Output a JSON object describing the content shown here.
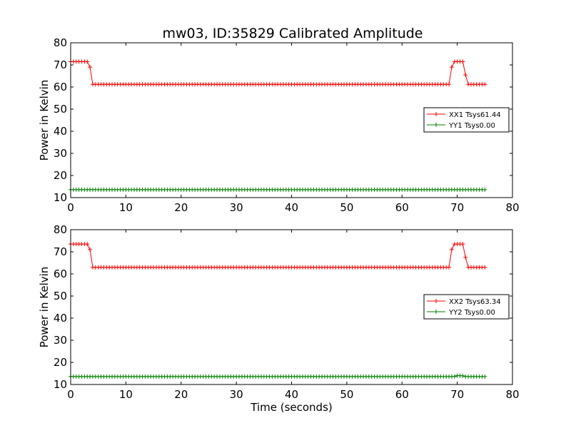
{
  "title": "mw03, ID:35829 Calibrated Amplitude",
  "colors": {
    "xx": "#ff0000",
    "yy": "#008000"
  },
  "chart_data": [
    {
      "type": "line",
      "title": "mw03, ID:35829 Calibrated Amplitude",
      "xlabel": "",
      "ylabel": "Power in Kelvin",
      "xlim": [
        0,
        80
      ],
      "ylim": [
        10,
        80
      ],
      "xticks": [
        "0",
        "10",
        "20",
        "30",
        "40",
        "50",
        "60",
        "70",
        "80"
      ],
      "yticks": [
        "10",
        "20",
        "30",
        "40",
        "50",
        "60",
        "70",
        "80"
      ],
      "grid": false,
      "legend_position": "center-right",
      "x_step": 0.5,
      "x_range": [
        0,
        75
      ],
      "series": [
        {
          "name": "XX1 Tsys61.44",
          "color": "#ff0000",
          "marker": "+",
          "profile": [
            {
              "x_from": 0,
              "x_to": 3.5,
              "y": 71.5
            },
            {
              "x_from": 4,
              "x_to": 69,
              "y": 61.2
            },
            {
              "x_from": 69.5,
              "x_to": 71,
              "y": 71.5
            },
            {
              "x_from": 71.5,
              "x_to": 75,
              "y": 61.2
            }
          ],
          "points_override": [
            {
              "x": 3.5,
              "y": 69
            },
            {
              "x": 69.0,
              "y": 69
            },
            {
              "x": 71.5,
              "y": 65.5
            }
          ]
        },
        {
          "name": "YY1 Tsys0.00",
          "color": "#008000",
          "marker": "+",
          "profile": [
            {
              "x_from": 0,
              "x_to": 75,
              "y": 13.6
            }
          ]
        }
      ]
    },
    {
      "type": "line",
      "title": "",
      "xlabel": "Time (seconds)",
      "ylabel": "Power in Kelvin",
      "xlim": [
        0,
        80
      ],
      "ylim": [
        10,
        80
      ],
      "xticks": [
        "0",
        "10",
        "20",
        "30",
        "40",
        "50",
        "60",
        "70",
        "80"
      ],
      "yticks": [
        "10",
        "20",
        "30",
        "40",
        "50",
        "60",
        "70",
        "80"
      ],
      "grid": false,
      "legend_position": "center-right",
      "x_step": 0.5,
      "x_range": [
        0,
        75
      ],
      "series": [
        {
          "name": "XX2 Tsys63.34",
          "color": "#ff0000",
          "marker": "+",
          "profile": [
            {
              "x_from": 0,
              "x_to": 3.5,
              "y": 73.5
            },
            {
              "x_from": 4,
              "x_to": 69,
              "y": 63.0
            },
            {
              "x_from": 69.5,
              "x_to": 71,
              "y": 73.5
            },
            {
              "x_from": 71.5,
              "x_to": 75,
              "y": 63.0
            }
          ],
          "points_override": [
            {
              "x": 3.5,
              "y": 71
            },
            {
              "x": 69.0,
              "y": 71
            },
            {
              "x": 71.5,
              "y": 67.5
            }
          ]
        },
        {
          "name": "YY2 Tsys0.00",
          "color": "#008000",
          "marker": "+",
          "profile": [
            {
              "x_from": 0,
              "x_to": 75,
              "y": 13.6
            }
          ],
          "points_override": [
            {
              "x": 70.0,
              "y": 14.0
            },
            {
              "x": 70.5,
              "y": 14.0
            },
            {
              "x": 71.0,
              "y": 13.9
            }
          ]
        }
      ]
    }
  ]
}
